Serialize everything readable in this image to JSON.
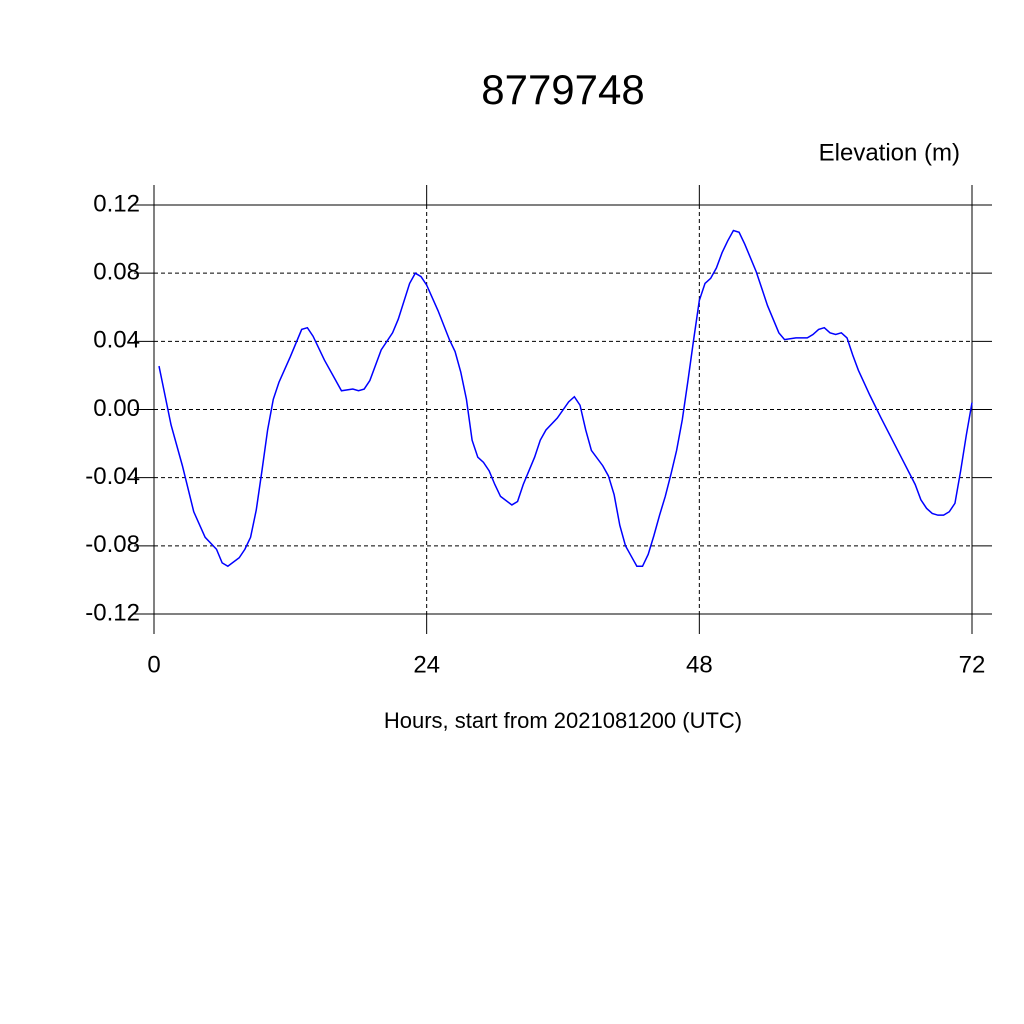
{
  "chart_data": {
    "type": "line",
    "title": "8779748",
    "subtitle": "Elevation (m)",
    "x_label": "Hours, start from 2021081200 (UTC)",
    "x": [
      0.44,
      1.5,
      2.5,
      3.5,
      4.5,
      5.5,
      6.0,
      6.5,
      7.5,
      8.0,
      8.5,
      9.0,
      9.5,
      10.0,
      10.5,
      11.0,
      12.0,
      13.0,
      13.5,
      14.0,
      15.0,
      16.0,
      16.5,
      17.5,
      18.0,
      18.5,
      19.0,
      20.0,
      21.0,
      21.5,
      22.5,
      23.0,
      23.5,
      24.0,
      25.0,
      26.0,
      26.5,
      27.0,
      27.5,
      28.0,
      28.5,
      29.0,
      29.5,
      30.0,
      30.5,
      31.5,
      32.0,
      32.5,
      33.5,
      34.0,
      34.5,
      35.5,
      36.5,
      37.0,
      37.5,
      38.0,
      38.5,
      39.5,
      40.0,
      40.5,
      41.0,
      41.5,
      42.0,
      42.5,
      43.0,
      43.5,
      44.0,
      44.5,
      45.0,
      45.5,
      46.0,
      46.5,
      47.0,
      47.5,
      48.0,
      48.5,
      49.0,
      49.5,
      50.0,
      50.5,
      51.0,
      51.5,
      52.0,
      53.0,
      54.0,
      54.5,
      55.0,
      55.5,
      56.5,
      57.0,
      57.5,
      58.0,
      58.5,
      59.0,
      59.5,
      60.0,
      60.5,
      61.0,
      61.5,
      62.0,
      63.0,
      64.0,
      65.0,
      66.0,
      67.0,
      67.5,
      68.0,
      68.5,
      69.0,
      69.5,
      70.0,
      70.5,
      71.0,
      71.5,
      72.0
    ],
    "series": [
      {
        "name": "Elevation",
        "color": "#0000ff",
        "values": [
          0.0255,
          -0.009,
          -0.033,
          -0.06,
          -0.075,
          -0.082,
          -0.09,
          -0.092,
          -0.087,
          -0.082,
          -0.075,
          -0.059,
          -0.036,
          -0.012,
          0.006,
          0.016,
          0.031,
          0.047,
          0.048,
          0.043,
          0.029,
          0.017,
          0.011,
          0.012,
          0.011,
          0.012,
          0.017,
          0.035,
          0.045,
          0.053,
          0.074,
          0.08,
          0.078,
          0.073,
          0.058,
          0.041,
          0.034,
          0.022,
          0.006,
          -0.018,
          -0.028,
          -0.031,
          -0.036,
          -0.044,
          -0.051,
          -0.056,
          -0.054,
          -0.044,
          -0.028,
          -0.018,
          -0.012,
          -0.005,
          0.0045,
          0.0075,
          0.0025,
          -0.012,
          -0.024,
          -0.033,
          -0.039,
          -0.05,
          -0.068,
          -0.08,
          -0.086,
          -0.092,
          -0.092,
          -0.085,
          -0.074,
          -0.062,
          -0.051,
          -0.038,
          -0.024,
          -0.006,
          0.017,
          0.041,
          0.064,
          0.074,
          0.077,
          0.083,
          0.092,
          0.099,
          0.105,
          0.104,
          0.097,
          0.081,
          0.061,
          0.053,
          0.045,
          0.041,
          0.042,
          0.042,
          0.042,
          0.044,
          0.047,
          0.048,
          0.045,
          0.044,
          0.045,
          0.042,
          0.032,
          0.023,
          0.0085,
          -0.005,
          -0.018,
          -0.031,
          -0.044,
          -0.053,
          -0.058,
          -0.061,
          -0.062,
          -0.062,
          -0.06,
          -0.055,
          -0.036,
          -0.015,
          0.004
        ]
      }
    ],
    "xlim": [
      0,
      72
    ],
    "xticks": [
      0,
      24,
      48,
      72
    ],
    "ylim": [
      -0.12,
      0.12
    ],
    "yticks": [
      0.12,
      0.08,
      0.04,
      {
        "value": 0,
        "label": "0.00"
      },
      -0.04,
      -0.08,
      -0.12
    ],
    "grid": true
  }
}
